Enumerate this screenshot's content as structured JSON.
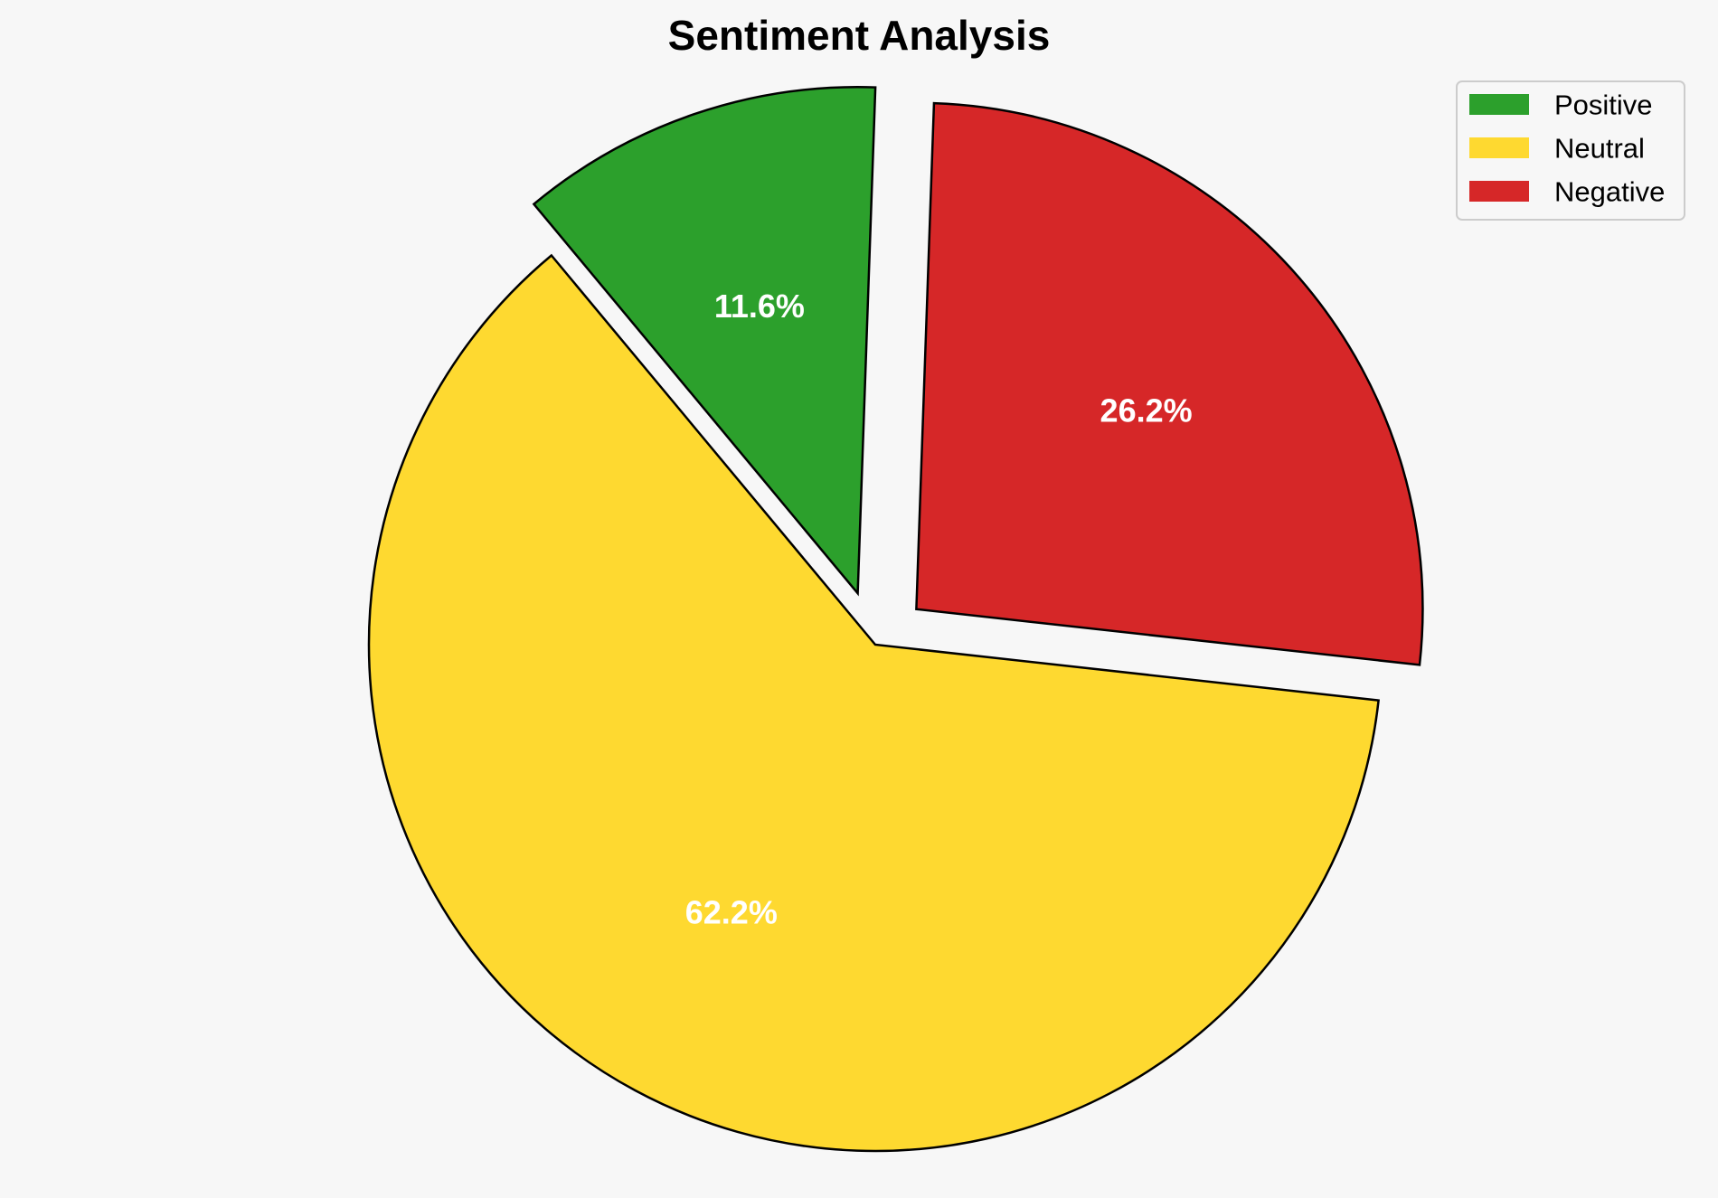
{
  "chart_data": {
    "type": "pie",
    "title": "Sentiment Analysis",
    "categories": [
      "Positive",
      "Neutral",
      "Negative"
    ],
    "values": [
      11.6,
      62.2,
      26.2
    ],
    "value_labels": [
      "11.6%",
      "62.2%",
      "26.2%"
    ],
    "colors": [
      "#2ca02c",
      "#fed930",
      "#d62728"
    ],
    "exploded": [
      true,
      false,
      true
    ],
    "legend": {
      "position": "top-right",
      "entries": [
        "Positive",
        "Neutral",
        "Negative"
      ]
    }
  }
}
